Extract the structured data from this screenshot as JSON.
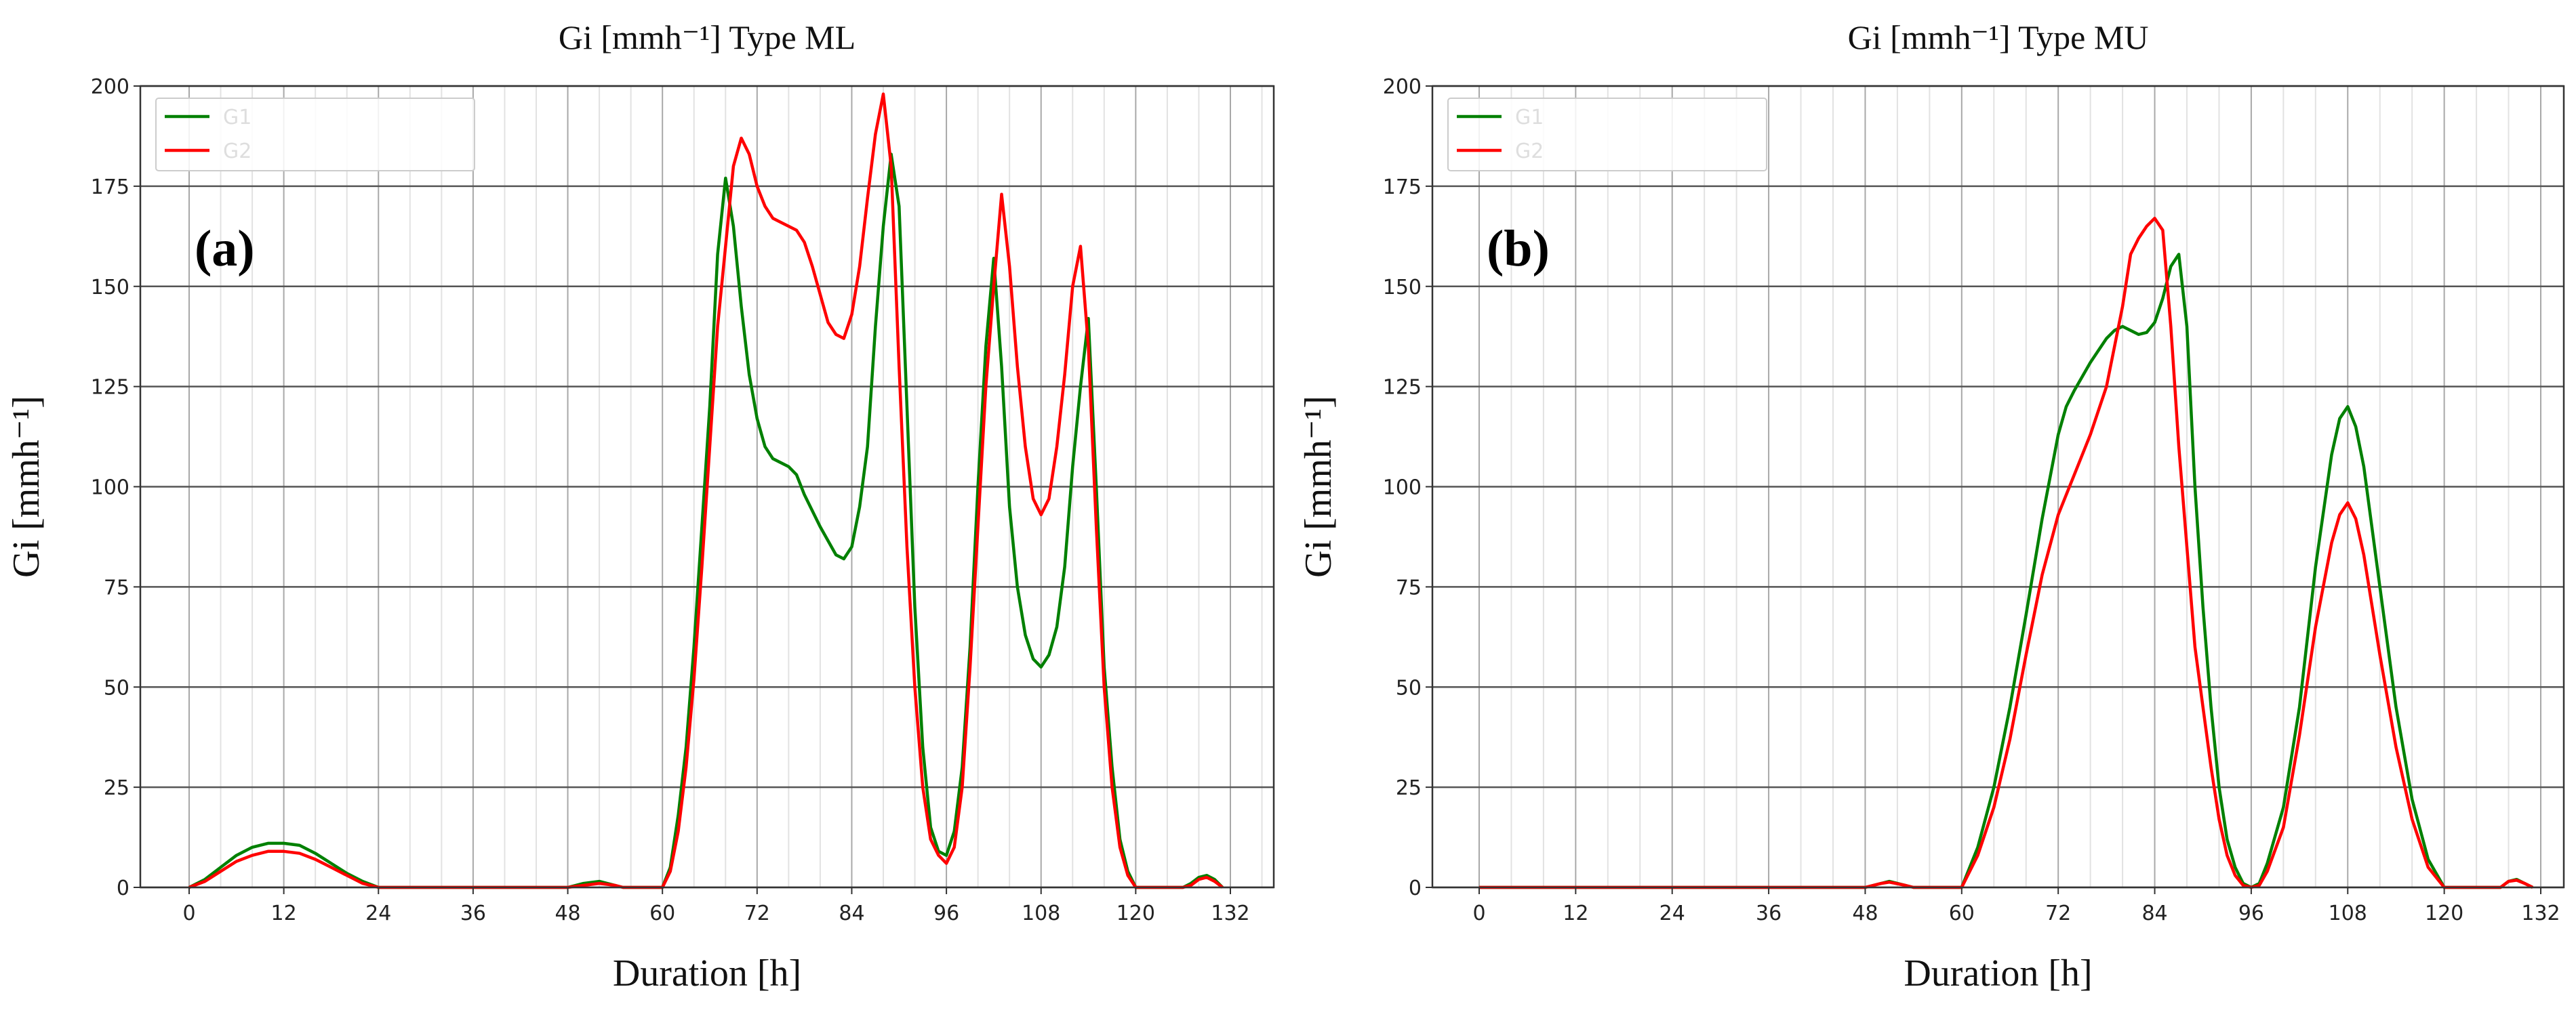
{
  "colors": {
    "G1": "#008000",
    "G2": "#ff0000"
  },
  "chart_data": [
    {
      "type": "line",
      "title": "Gi [mmh⁻¹] Type ML",
      "panel_label": "(a)",
      "xlabel": "Duration [h]",
      "ylabel": "Gi [mmh⁻¹]",
      "xlim": [
        -10,
        138
      ],
      "ylim": [
        0,
        200
      ],
      "xticks": [
        0,
        12,
        24,
        36,
        48,
        60,
        72,
        84,
        96,
        108,
        120,
        132
      ],
      "yticks": [
        0,
        25,
        50,
        75,
        100,
        125,
        150,
        175,
        200
      ],
      "grid": true,
      "legend": "top-left",
      "series": [
        {
          "name": "G1",
          "color": "#008000",
          "x": [
            0,
            2,
            4,
            6,
            8,
            10,
            12,
            14,
            16,
            18,
            20,
            22,
            24,
            48,
            50,
            52,
            54,
            55,
            60,
            61,
            62,
            63,
            64,
            65,
            66,
            67,
            68,
            69,
            70,
            71,
            72,
            73,
            74,
            76,
            77,
            78,
            80,
            82,
            83,
            84,
            85,
            86,
            87,
            88,
            89,
            90,
            91,
            92,
            93,
            94,
            95,
            96,
            97,
            98,
            99,
            100,
            101,
            102,
            103,
            104,
            105,
            106,
            107,
            108,
            109,
            110,
            111,
            112,
            113,
            114,
            115,
            116,
            117,
            118,
            119,
            120,
            126,
            127,
            128,
            129,
            130,
            131
          ],
          "y": [
            0,
            2,
            5,
            8,
            10,
            11,
            11,
            10.5,
            8.5,
            6,
            3.5,
            1.5,
            0,
            0,
            1,
            1.5,
            0.5,
            0,
            0,
            5,
            18,
            35,
            60,
            90,
            120,
            158,
            177,
            165,
            145,
            128,
            117,
            110,
            107,
            105,
            103,
            98,
            90,
            83,
            82,
            85,
            95,
            110,
            140,
            165,
            183,
            170,
            120,
            70,
            35,
            15,
            9,
            8,
            14,
            30,
            60,
            100,
            135,
            157,
            130,
            95,
            75,
            63,
            57,
            55,
            58,
            65,
            80,
            105,
            125,
            142,
            100,
            55,
            30,
            12,
            4,
            0,
            0,
            1,
            2.5,
            3,
            2,
            0
          ]
        },
        {
          "name": "G2",
          "color": "#ff0000",
          "x": [
            0,
            2,
            4,
            6,
            8,
            10,
            12,
            14,
            16,
            18,
            20,
            22,
            24,
            48,
            50,
            52,
            54,
            55,
            60,
            61,
            62,
            63,
            64,
            65,
            66,
            67,
            68,
            69,
            70,
            71,
            72,
            73,
            74,
            75,
            76,
            77,
            78,
            79,
            80,
            81,
            82,
            83,
            84,
            85,
            86,
            87,
            88,
            89,
            90,
            91,
            92,
            93,
            94,
            95,
            96,
            97,
            98,
            99,
            100,
            101,
            102,
            103,
            104,
            105,
            106,
            107,
            108,
            109,
            110,
            111,
            112,
            113,
            114,
            115,
            116,
            117,
            118,
            119,
            120,
            126,
            127,
            128,
            129,
            130,
            131
          ],
          "y": [
            0,
            1.5,
            4,
            6.5,
            8,
            9,
            9,
            8.5,
            7,
            5,
            3,
            1,
            0,
            0,
            0.5,
            1,
            0.5,
            0,
            0,
            4,
            14,
            30,
            52,
            80,
            110,
            140,
            160,
            180,
            187,
            183,
            175,
            170,
            167,
            166,
            165,
            164,
            161,
            155,
            148,
            141,
            138,
            137,
            143,
            155,
            172,
            188,
            198,
            180,
            130,
            85,
            50,
            25,
            12,
            8,
            6,
            10,
            25,
            55,
            90,
            125,
            150,
            173,
            155,
            130,
            110,
            97,
            93,
            97,
            110,
            128,
            150,
            160,
            135,
            90,
            50,
            25,
            10,
            3,
            0,
            0,
            0.5,
            2,
            2.5,
            1.5,
            0
          ]
        }
      ]
    },
    {
      "type": "line",
      "title": "Gi [mmh⁻¹] Type MU",
      "panel_label": "(b)",
      "xlabel": "Duration [h]",
      "ylabel": "Gi [mmh⁻¹]",
      "xlim": [
        -10,
        138
      ],
      "ylim": [
        0,
        200
      ],
      "xticks": [
        0,
        12,
        24,
        36,
        48,
        60,
        72,
        84,
        96,
        108,
        120,
        132
      ],
      "yticks": [
        0,
        25,
        50,
        75,
        100,
        125,
        150,
        175,
        200
      ],
      "grid": true,
      "legend": "top-left",
      "series": [
        {
          "name": "G1",
          "color": "#008000",
          "x": [
            0,
            48,
            50,
            51,
            53,
            54,
            60,
            62,
            64,
            66,
            68,
            70,
            72,
            73,
            74,
            76,
            78,
            79,
            80,
            81,
            82,
            83,
            84,
            85,
            86,
            87,
            88,
            89,
            90,
            91,
            92,
            93,
            94,
            95,
            96,
            97,
            98,
            100,
            102,
            104,
            106,
            107,
            108,
            109,
            110,
            112,
            114,
            116,
            118,
            120,
            127,
            128,
            129,
            130,
            131
          ],
          "y": [
            0,
            0,
            1,
            1.5,
            0.5,
            0,
            0,
            10,
            25,
            45,
            68,
            92,
            113,
            120,
            124,
            131,
            137,
            139,
            140,
            139,
            138,
            138.5,
            141,
            147,
            155,
            158,
            140,
            100,
            70,
            45,
            25,
            12,
            5,
            1,
            0,
            1,
            6,
            20,
            45,
            80,
            108,
            117,
            120,
            115,
            105,
            75,
            45,
            22,
            7,
            0,
            0,
            1.5,
            2,
            1,
            0
          ]
        },
        {
          "name": "G2",
          "color": "#ff0000",
          "x": [
            0,
            48,
            50,
            51,
            53,
            54,
            60,
            62,
            64,
            66,
            68,
            70,
            72,
            74,
            76,
            78,
            80,
            81,
            82,
            83,
            84,
            85,
            86,
            87,
            88,
            89,
            90,
            91,
            92,
            93,
            94,
            95,
            96,
            97,
            98,
            100,
            102,
            104,
            106,
            107,
            108,
            109,
            110,
            112,
            114,
            116,
            118,
            120,
            127,
            128,
            129,
            130,
            131
          ],
          "y": [
            0,
            0,
            1,
            1.3,
            0.5,
            0,
            0,
            8,
            20,
            37,
            58,
            78,
            93,
            103,
            113,
            125,
            145,
            158,
            162,
            165,
            167,
            164,
            140,
            110,
            85,
            60,
            45,
            30,
            17,
            8,
            3,
            0.5,
            0,
            0.5,
            4,
            15,
            38,
            65,
            86,
            93,
            96,
            92,
            83,
            58,
            35,
            17,
            5,
            0,
            0,
            1.5,
            1.8,
            1,
            0
          ]
        }
      ]
    }
  ]
}
